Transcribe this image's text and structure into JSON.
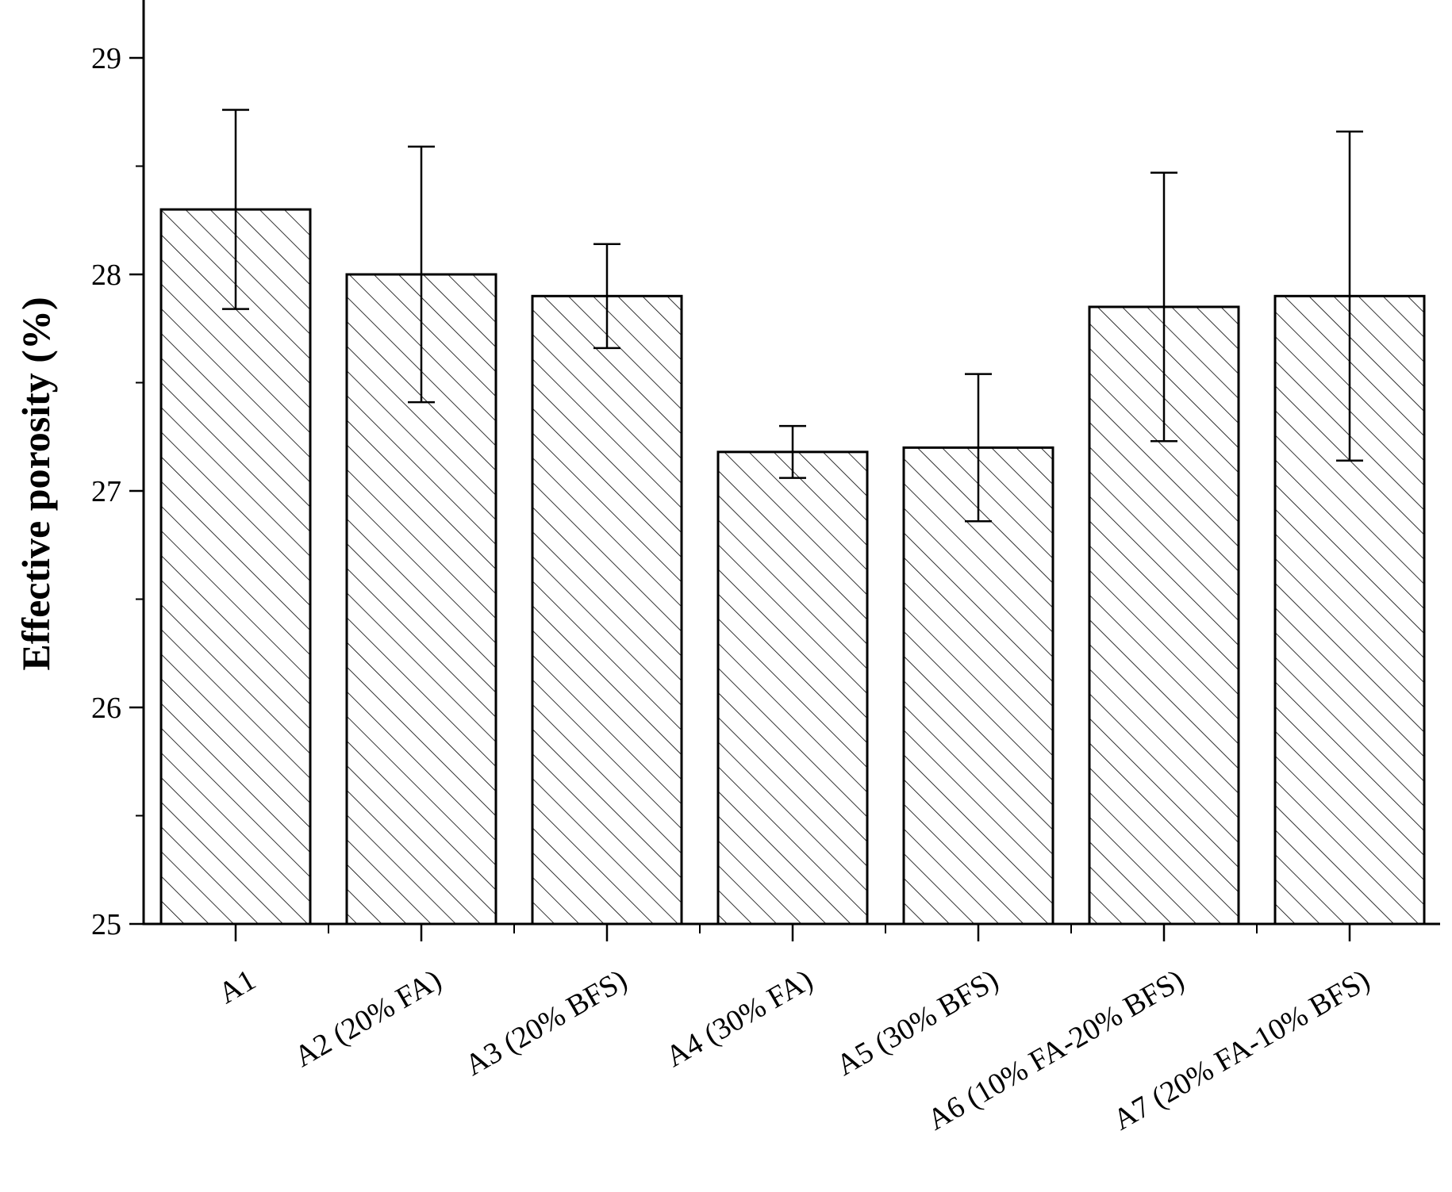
{
  "chart_data": {
    "type": "bar",
    "title": "",
    "xlabel": "",
    "ylabel": "Effective porosity (%)",
    "categories": [
      "A1",
      "A2 (20% FA)",
      "A3 (20% BFS)",
      "A4 (30% FA)",
      "A5 (30% BFS)",
      "A6 (10% FA-20% BFS)",
      "A7 (20% FA-10% BFS)"
    ],
    "values": [
      28.3,
      28.0,
      27.9,
      27.18,
      27.2,
      27.85,
      27.9
    ],
    "error_upper": [
      28.76,
      28.59,
      28.14,
      27.3,
      27.54,
      28.47,
      28.66
    ],
    "error_lower": [
      27.84,
      27.41,
      27.66,
      27.06,
      26.86,
      27.23,
      27.14
    ],
    "ylim": [
      25,
      29.2
    ],
    "y_ticks": [
      "25",
      "26",
      "27",
      "28",
      "29"
    ],
    "bar_fill": "hatched",
    "grid": false,
    "legend": "none"
  }
}
